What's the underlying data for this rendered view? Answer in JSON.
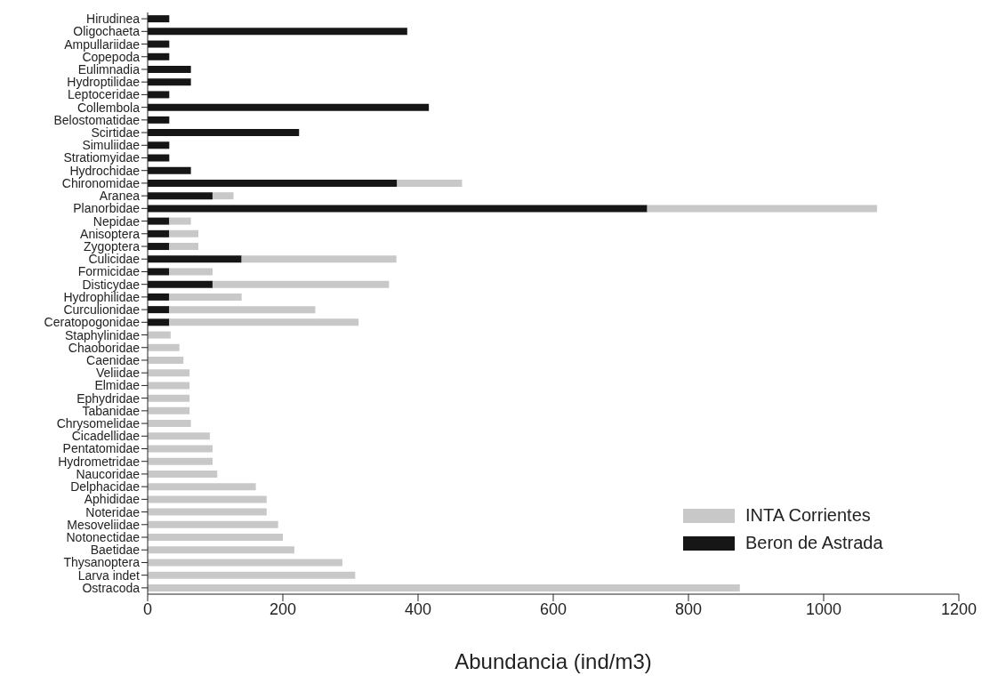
{
  "chart_data": {
    "type": "bar",
    "orientation": "horizontal",
    "stacked": true,
    "xlabel": "Abundancia (ind/m3)",
    "categories": [
      "Hirudinea",
      "Oligochaeta",
      "Ampullariidae",
      "Copepoda",
      "Eulimnadia",
      "Hydroptilidae",
      "Leptoceridae",
      "Collembola",
      "Belostomatidae",
      "Scirtidae",
      "Simuliidae",
      "Stratiomyidae",
      "Hydrochidae",
      "Chironomidae",
      "Aranea",
      "Planorbidae",
      "Nepidae",
      "Anisoptera",
      "Zygoptera",
      "Culicidae",
      "Formicidae",
      "Disticydae",
      "Hydrophilidae",
      "Curculionidae",
      "Ceratopogonidae",
      "Staphylinidae",
      "Chaoboridae",
      "Caenidae",
      "Veliidae",
      "Elmidae",
      "Ephydridae",
      "Tabanidae",
      "Chrysomelidae",
      "Cicadellidae",
      "Pentatomidae",
      "Hydrometridae",
      "Naucoridae",
      "Delphacidae",
      "Aphididae",
      "Noteridae",
      "Mesoveliidae",
      "Notonectidae",
      "Baetidae",
      "Thysanoptera",
      "Larva indet",
      "Ostracoda"
    ],
    "series": [
      {
        "name": "Beron de Astrada",
        "color": "#161616",
        "values": [
          32,
          384,
          32,
          32,
          64,
          64,
          32,
          416,
          32,
          224,
          32,
          32,
          64,
          369,
          96,
          739,
          32,
          32,
          32,
          139,
          32,
          96,
          32,
          32,
          32,
          null,
          null,
          null,
          null,
          null,
          null,
          null,
          null,
          null,
          null,
          null,
          null,
          null,
          null,
          null,
          null,
          null,
          null,
          null,
          null,
          null
        ]
      },
      {
        "name": "INTA Corrientes",
        "color": "#c8c8c8",
        "values": [
          null,
          null,
          null,
          null,
          null,
          null,
          null,
          null,
          null,
          null,
          null,
          null,
          null,
          96,
          31,
          340,
          32,
          43,
          43,
          229,
          64,
          261,
          107,
          216,
          280,
          34,
          47,
          53,
          62,
          62,
          62,
          62,
          64,
          92,
          96,
          96,
          103,
          160,
          176,
          176,
          193,
          200,
          217,
          288,
          307,
          876
        ]
      }
    ],
    "xlim": [
      0,
      1200
    ],
    "xticks": [
      0,
      200,
      400,
      600,
      800,
      1000,
      1200
    ],
    "legend": "bottom right"
  }
}
